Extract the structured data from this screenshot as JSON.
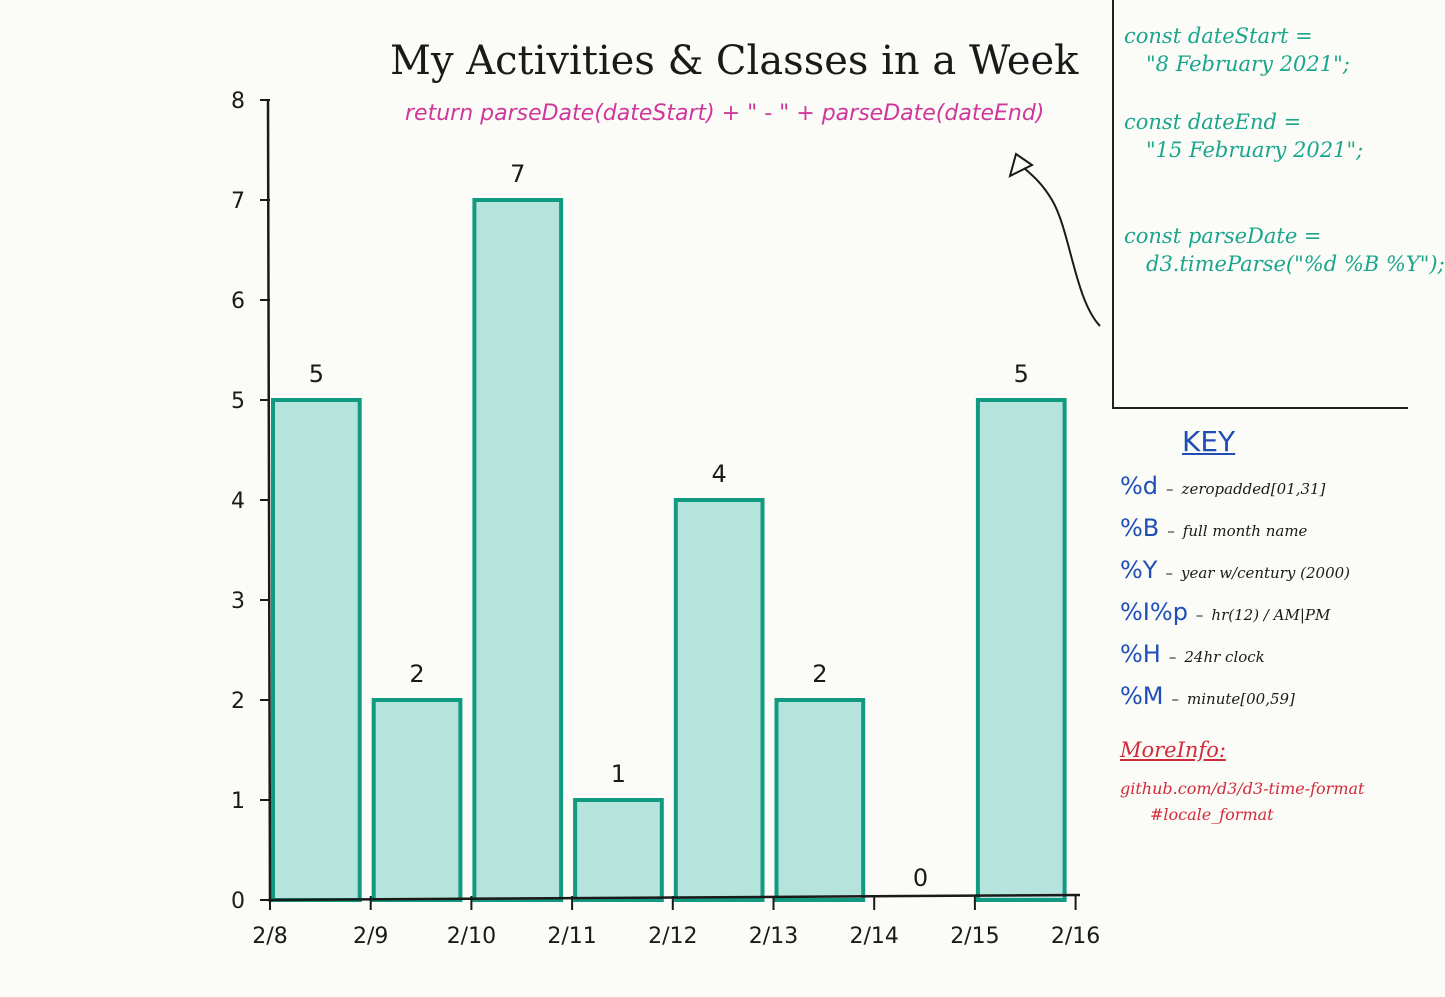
{
  "chart_data": {
    "type": "bar",
    "title": "My Activities & Classes in a Week",
    "subtitle": "return parseDate(dateStart) + \" - \" + parseDate(dateEnd)",
    "x_ticks": [
      "2/8",
      "2/9",
      "2/10",
      "2/11",
      "2/12",
      "2/13",
      "2/14",
      "2/15",
      "2/16"
    ],
    "categories": [
      "2/8",
      "2/9",
      "2/10",
      "2/11",
      "2/12",
      "2/13",
      "2/14",
      "2/15"
    ],
    "values": [
      5,
      2,
      7,
      1,
      4,
      2,
      0,
      5
    ],
    "y_ticks": [
      0,
      1,
      2,
      3,
      4,
      5,
      6,
      7,
      8
    ],
    "ylim": [
      0,
      8
    ],
    "grid": false,
    "bar_color": "#22b3a3",
    "bar_outline": "#119a80"
  },
  "code_box": {
    "lines": [
      "const dateStart =",
      "\"8 February 2021\";",
      "const dateEnd =",
      "\"15 February 2021\";",
      "const parseDate =",
      "d3.timeParse(\"%d %B %Y\");"
    ],
    "color": "#1aa58c"
  },
  "key": {
    "title": "KEY",
    "items": [
      {
        "code": "%d",
        "desc": "zeropadded[01,31]"
      },
      {
        "code": "%B",
        "desc": "full month name"
      },
      {
        "code": "%Y",
        "desc": "year w/century (2000)"
      },
      {
        "code": "%I%p",
        "desc": "hr(12) / AM|PM"
      },
      {
        "code": "%H",
        "desc": "24hr clock"
      },
      {
        "code": "%M",
        "desc": "minute[00,59]"
      }
    ],
    "more_info_title": "MoreInfo:",
    "more_info_link_1": "github.com/d3/d3-time-format",
    "more_info_link_2": "#locale_format",
    "code_color": "#1f4fb5",
    "more_info_color": "#d12a3a"
  }
}
